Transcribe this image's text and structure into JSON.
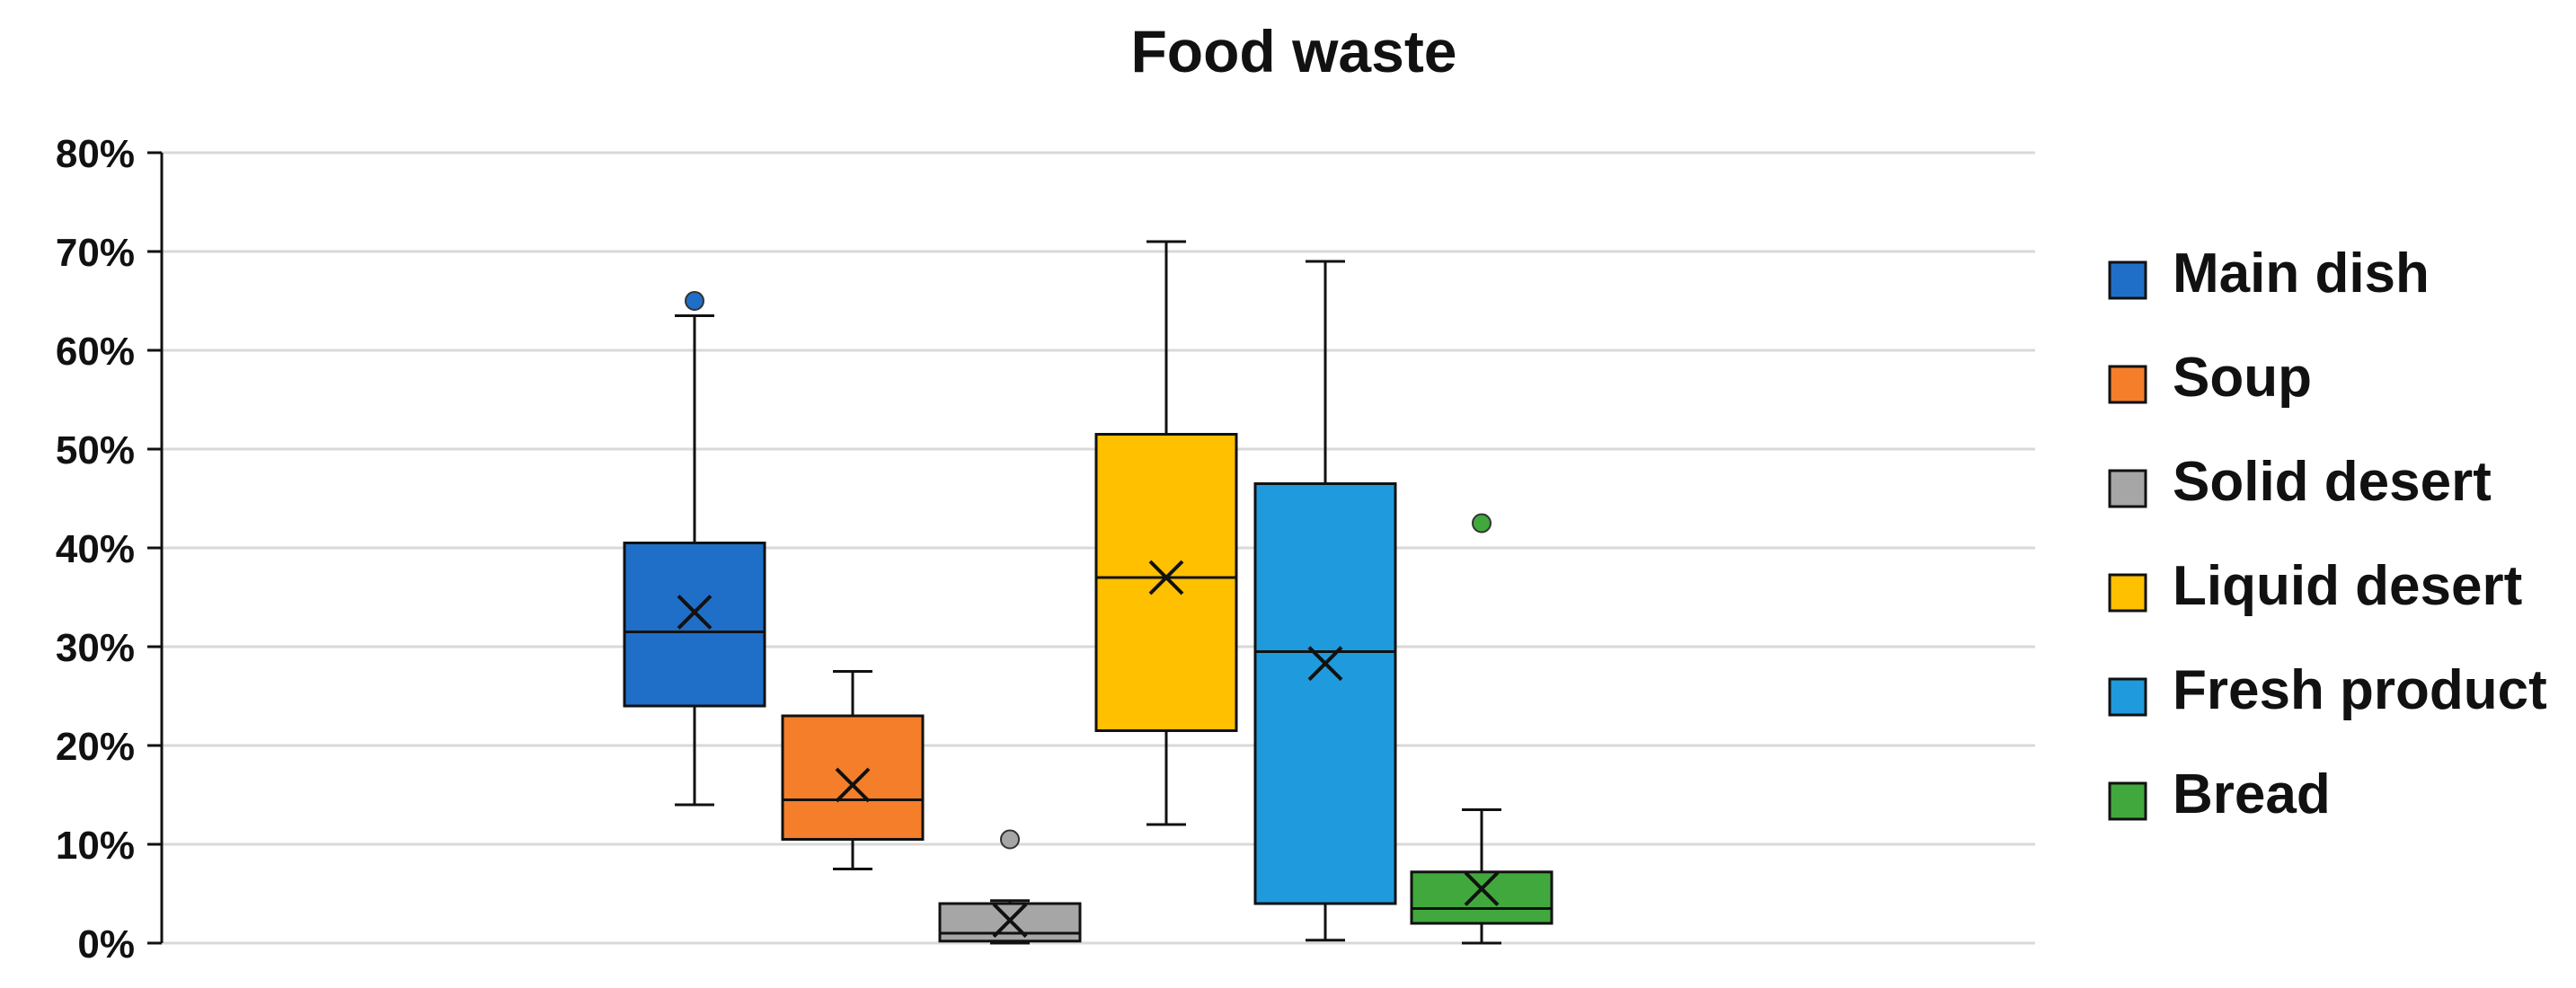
{
  "chart_data": {
    "type": "box",
    "title": "Food waste",
    "ylim": [
      0,
      80
    ],
    "y_ticks": [
      "0%",
      "10%",
      "20%",
      "30%",
      "40%",
      "50%",
      "60%",
      "70%",
      "80%"
    ],
    "y_unit": "%",
    "grid": true,
    "legend_position": "right",
    "series": [
      {
        "name": "Main dish",
        "color": "#1F6FC8",
        "min": 14,
        "q1": 24,
        "median": 31.5,
        "q3": 40.5,
        "max": 63.5,
        "mean": 33.5,
        "outliers": [
          65
        ]
      },
      {
        "name": "Soup",
        "color": "#F47E2A",
        "min": 7.5,
        "q1": 10.5,
        "median": 14.5,
        "q3": 23,
        "max": 27.5,
        "mean": 16,
        "outliers": []
      },
      {
        "name": "Solid desert",
        "color": "#A6A6A6",
        "min": 0,
        "q1": 0.2,
        "median": 1,
        "q3": 4,
        "max": 4.3,
        "mean": 2.3,
        "outliers": [
          10.5
        ]
      },
      {
        "name": "Liquid desert",
        "color": "#FFC000",
        "min": 12,
        "q1": 21.5,
        "median": 37,
        "q3": 51.5,
        "max": 71,
        "mean": 37,
        "outliers": []
      },
      {
        "name": "Fresh product",
        "color": "#1F9ADC",
        "min": 0.3,
        "q1": 4,
        "median": 29.5,
        "q3": 46.5,
        "max": 69,
        "mean": 28.3,
        "outliers": []
      },
      {
        "name": "Bread",
        "color": "#41A83D",
        "min": 0,
        "q1": 2,
        "median": 3.5,
        "q3": 7.2,
        "max": 13.5,
        "mean": 5.5,
        "outliers": [
          42.5
        ]
      }
    ]
  }
}
